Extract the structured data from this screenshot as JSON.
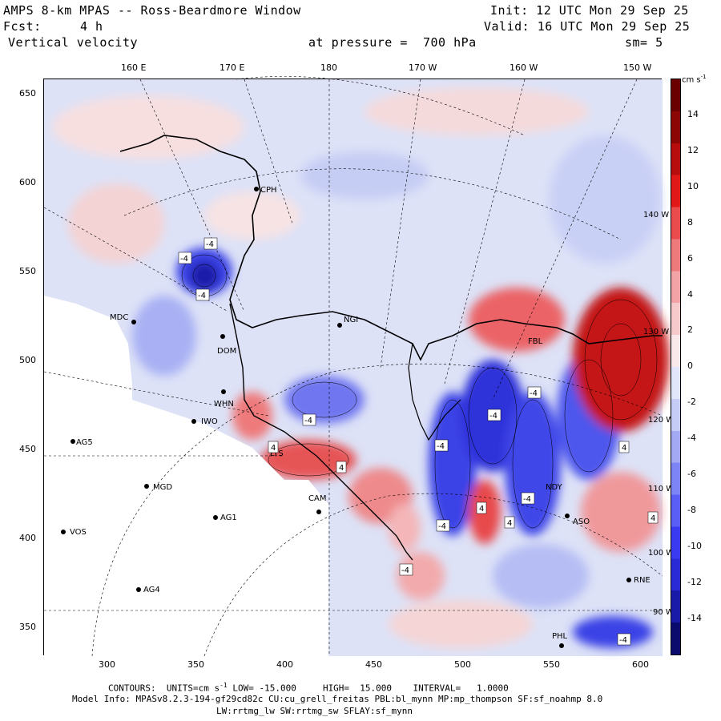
{
  "header": {
    "title": "AMPS 8-km MPAS -- Ross-Beardmore Window",
    "fcst_label": "Fcst:",
    "fcst_value": "4 h",
    "field": "Vertical velocity",
    "pressure": "at pressure =  700 hPa",
    "init": "Init: 12 UTC Mon 29 Sep 25",
    "valid": "Valid: 16 UTC Mon 29 Sep 25",
    "smooth": "sm= 5"
  },
  "top_ticks": [
    "160 E",
    "170 E",
    "180",
    "170 W",
    "160 W",
    "150 W"
  ],
  "left_ticks": [
    "650",
    "600",
    "550",
    "500",
    "450",
    "400",
    "350"
  ],
  "bottom_ticks": [
    "300",
    "350",
    "400",
    "450",
    "500",
    "550",
    "600"
  ],
  "colorbar": {
    "units": "cm s",
    "units_exp": "-1",
    "ticks": [
      "14",
      "12",
      "10",
      "8",
      "6",
      "4",
      "2",
      "0",
      "-2",
      "-4",
      "-6",
      "-8",
      "-10",
      "-12",
      "-14"
    ],
    "colors": [
      "#0b0b6e",
      "#1a1aa8",
      "#2a2ad6",
      "#3a3af0",
      "#5a5ef5",
      "#7d84f5",
      "#a3aaf3",
      "#c5ccf6",
      "#e2e6fa",
      "#fae9ea",
      "#f6c9cb",
      "#f2a3a6",
      "#ee7a7c",
      "#ea4c4e",
      "#e01818",
      "#b80d0d",
      "#8c0606",
      "#6a0000"
    ]
  },
  "stations": [
    "CPH",
    "MDC",
    "NGI",
    "FBL",
    "DOM",
    "WHN",
    "IWO",
    "AG5",
    "MGD",
    "AG1",
    "VOS",
    "AG4",
    "LYS",
    "CAM",
    "NDY",
    "ASO",
    "RNE",
    "PHL"
  ],
  "lon_labels": [
    "140 W",
    "130 W",
    "120 W",
    "110 W",
    "100 W",
    "90 W"
  ],
  "footer": {
    "line1_label": "CONTOURS:",
    "line1_units": "UNITS=cm s",
    "line1_exp": "-1",
    "line1_rest": " LOW= -15.000     HIGH=  15.000    INTERVAL=   1.0000",
    "line2": "Model Info: MPASv8.2.3-194-gf29cd82c CU:cu_grell_freitas PBL:bl_mynn MP:mp_thompson SF:sf_noahmp 8.0",
    "line3": "LW:rrtmg_lw SW:rrtmg_sw SFLAY:sf_mynn"
  }
}
